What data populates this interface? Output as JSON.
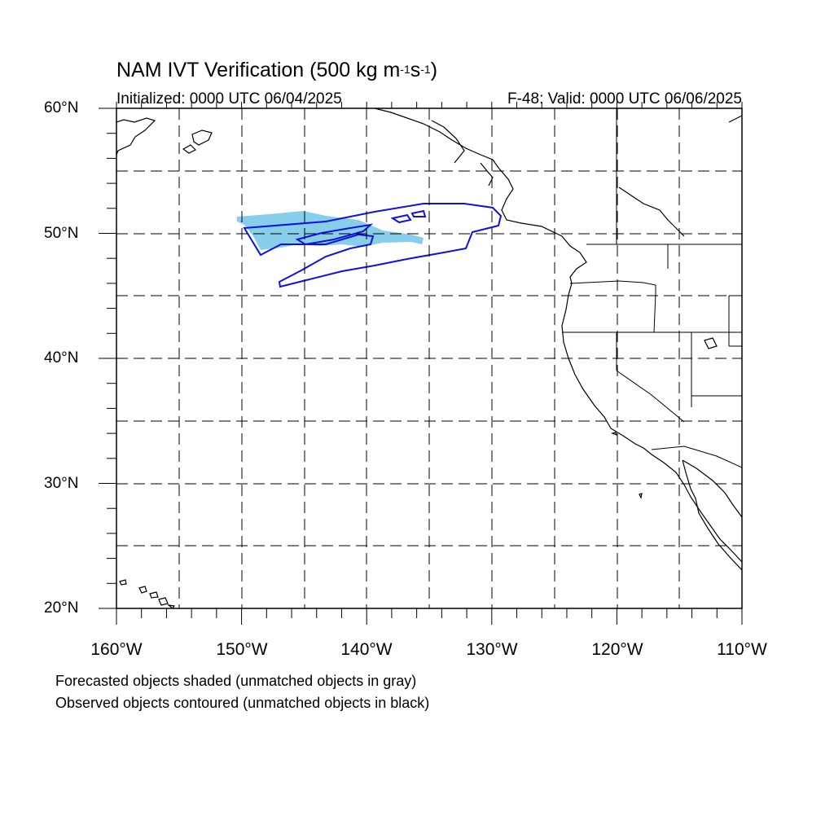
{
  "header": {
    "title_main": "NAM IVT Verification (500 kg m",
    "title_sup1": "-1",
    "title_mid": "s",
    "title_sup2": "-1",
    "title_end": ")",
    "initialized": "Initialized: 0000 UTC 06/04/2025",
    "valid": "F-48: Valid: 0000 UTC 06/06/2025"
  },
  "map": {
    "lat_labels": [
      "60°N",
      "50°N",
      "40°N",
      "30°N",
      "20°N"
    ],
    "lon_labels": [
      "160°W",
      "150°W",
      "140°W",
      "130°W",
      "120°W",
      "110°W"
    ],
    "extent": {
      "lon": [
        -160,
        -110
      ],
      "lat": [
        20,
        60
      ]
    },
    "colors": {
      "forecast_fill": "#87ceeb",
      "observed_contour": "#1010e0",
      "coast": "#000000",
      "grid": "#000000"
    }
  },
  "footer": {
    "line1": "Forecasted objects shaded (unmatched objects in gray)",
    "line2": "Observed objects contoured (unmatched objects in black)"
  }
}
